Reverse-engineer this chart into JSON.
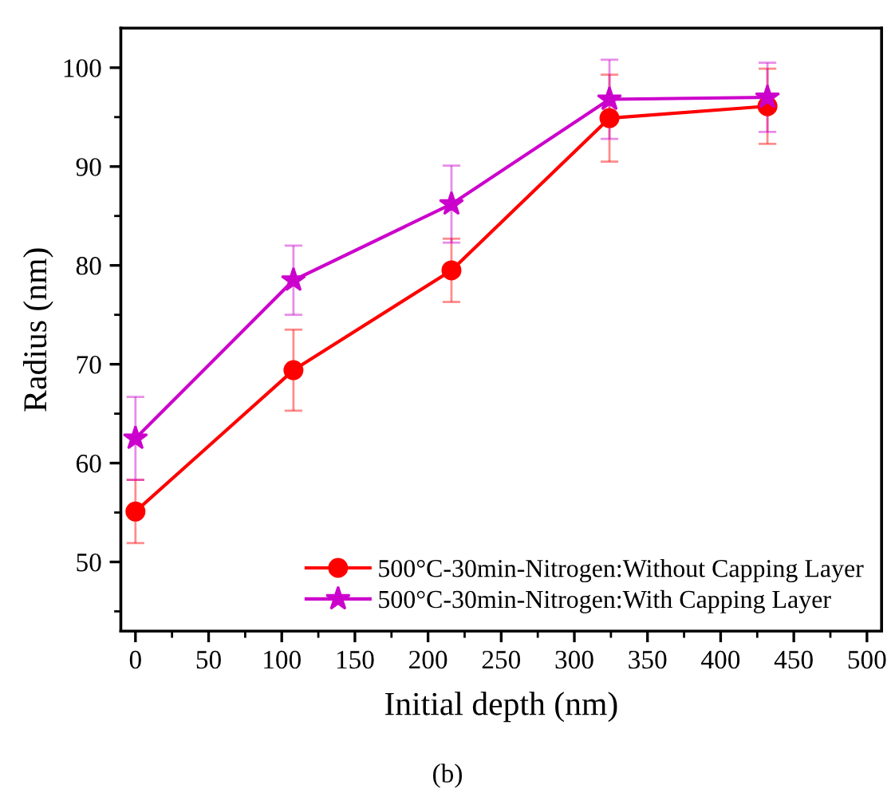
{
  "chart_data": {
    "type": "line",
    "xlabel": "Initial depth (nm)",
    "ylabel": "Radius (nm)",
    "x": [
      0,
      108,
      216,
      324,
      432
    ],
    "series": [
      {
        "name": "500°C-30min-Nitrogen:Without Capping Layer",
        "color": "#ff0000",
        "marker": "circle",
        "values": [
          55.1,
          69.4,
          79.5,
          94.9,
          96.1
        ],
        "errors": [
          3.2,
          4.1,
          3.2,
          4.4,
          3.8
        ]
      },
      {
        "name": "500°C-30min-Nitrogen:With Capping Layer",
        "color": "#cc00cc",
        "marker": "star",
        "values": [
          62.5,
          78.5,
          86.2,
          96.8,
          97.0
        ],
        "errors": [
          4.2,
          3.5,
          3.9,
          4.0,
          3.5
        ]
      }
    ],
    "xlim": [
      -10,
      510
    ],
    "ylim": [
      43,
      104
    ],
    "xticks": [
      0,
      50,
      100,
      150,
      200,
      250,
      300,
      350,
      400,
      450,
      500
    ],
    "yticks": [
      50,
      60,
      70,
      80,
      90,
      100
    ],
    "line_style": "solid",
    "grid": false,
    "legend": "bottom right",
    "annotations": [
      "(b)"
    ]
  }
}
